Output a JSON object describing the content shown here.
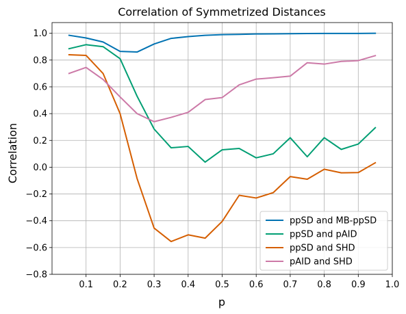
{
  "chart_data": {
    "type": "line",
    "title": "Correlation of Symmetrized Distances",
    "xlabel": "p",
    "ylabel": "Correlation",
    "xlim": [
      0.0,
      1.0
    ],
    "ylim": [
      -0.8,
      1.08
    ],
    "x_ticks": [
      0.1,
      0.2,
      0.3,
      0.4,
      0.5,
      0.6,
      0.7,
      0.8,
      0.9,
      1.0
    ],
    "x_tick_labels": [
      "0.1",
      "0.2",
      "0.3",
      "0.4",
      "0.5",
      "0.6",
      "0.7",
      "0.8",
      "0.9",
      "1.0"
    ],
    "y_ticks": [
      -0.8,
      -0.6,
      -0.4,
      -0.2,
      0.0,
      0.2,
      0.4,
      0.6,
      0.8,
      1.0
    ],
    "y_tick_labels": [
      "−0.8",
      "−0.6",
      "−0.4",
      "−0.2",
      "0.0",
      "0.2",
      "0.4",
      "0.6",
      "0.8",
      "1.0"
    ],
    "grid": true,
    "legend_position": "bottom-right",
    "x": [
      0.05,
      0.1,
      0.15,
      0.2,
      0.25,
      0.3,
      0.35,
      0.4,
      0.45,
      0.5,
      0.55,
      0.6,
      0.65,
      0.7,
      0.75,
      0.8,
      0.85,
      0.9,
      0.95
    ],
    "series": [
      {
        "name": "ppSD and MB-ppSD",
        "color": "#0072b2",
        "values": [
          0.985,
          0.965,
          0.935,
          0.865,
          0.86,
          0.92,
          0.962,
          0.975,
          0.985,
          0.99,
          0.992,
          0.995,
          0.996,
          0.997,
          0.998,
          0.999,
          0.999,
          0.999,
          1.0
        ]
      },
      {
        "name": "ppSD and pAID",
        "color": "#009e73",
        "values": [
          0.885,
          0.915,
          0.9,
          0.81,
          0.53,
          0.285,
          0.145,
          0.155,
          0.038,
          0.13,
          0.14,
          0.07,
          0.1,
          0.22,
          0.078,
          0.22,
          0.133,
          0.173,
          0.295
        ]
      },
      {
        "name": "ppSD and SHD",
        "color": "#d55e00",
        "values": [
          0.84,
          0.835,
          0.7,
          0.4,
          -0.085,
          -0.455,
          -0.555,
          -0.505,
          -0.53,
          -0.405,
          -0.21,
          -0.23,
          -0.19,
          -0.07,
          -0.09,
          -0.015,
          -0.042,
          -0.04,
          0.033
        ]
      },
      {
        "name": "pAID and SHD",
        "color": "#cc79a7",
        "values": [
          0.7,
          0.745,
          0.655,
          0.525,
          0.4,
          0.34,
          0.372,
          0.41,
          0.505,
          0.52,
          0.615,
          0.658,
          0.668,
          0.68,
          0.78,
          0.77,
          0.79,
          0.796,
          0.833
        ]
      }
    ]
  }
}
